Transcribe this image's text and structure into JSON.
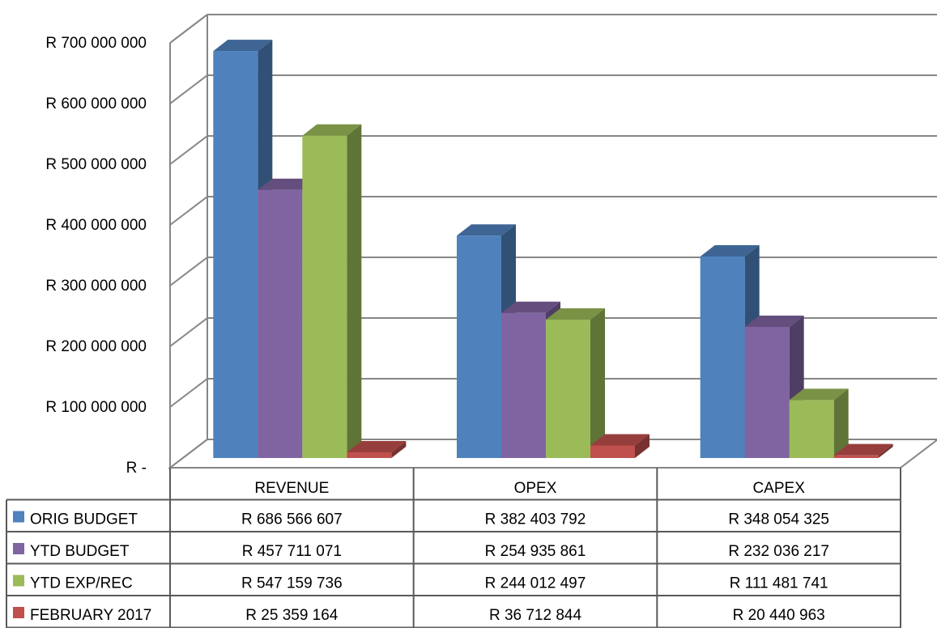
{
  "chart_data": {
    "type": "bar",
    "categories": [
      "REVENUE",
      "OPEX",
      "CAPEX"
    ],
    "series": [
      {
        "name": "ORIG BUDGET",
        "values": [
          686566607,
          382403792,
          348054325
        ],
        "labels": [
          "R 686 566 607",
          "R 382 403 792",
          "R 348 054 325"
        ],
        "color": "#4F81BD"
      },
      {
        "name": "YTD BUDGET",
        "values": [
          457711071,
          254935861,
          232036217
        ],
        "labels": [
          "R 457 711 071",
          "R 254 935 861",
          "R 232 036 217"
        ],
        "color": "#8064A2"
      },
      {
        "name": "YTD EXP/REC",
        "values": [
          547159736,
          244012497,
          111481741
        ],
        "labels": [
          "R 547 159 736",
          "R 244 012 497",
          "R 111 481 741"
        ],
        "color": "#9BBB59"
      },
      {
        "name": "FEBRUARY 2017",
        "values": [
          25359164,
          36712844,
          20440963
        ],
        "labels": [
          "R 25 359 164",
          "R 36 712 844",
          "R 20 440 963"
        ],
        "color": "#C0504D"
      }
    ],
    "ylim": [
      0,
      700000000
    ],
    "yticks": [
      0,
      100000000,
      200000000,
      300000000,
      400000000,
      500000000,
      600000000,
      700000000
    ],
    "ytick_labels": [
      "R -",
      "R 100 000 000",
      "R 200 000 000",
      "R 300 000 000",
      "R 400 000 000",
      "R 500 000 000",
      "R 600 000 000",
      "R 700 000 000"
    ],
    "style": "3d-clustered-column",
    "grid": true,
    "legend": "data-table",
    "colors": {
      "grid": "#868686",
      "border": "#595959"
    }
  }
}
